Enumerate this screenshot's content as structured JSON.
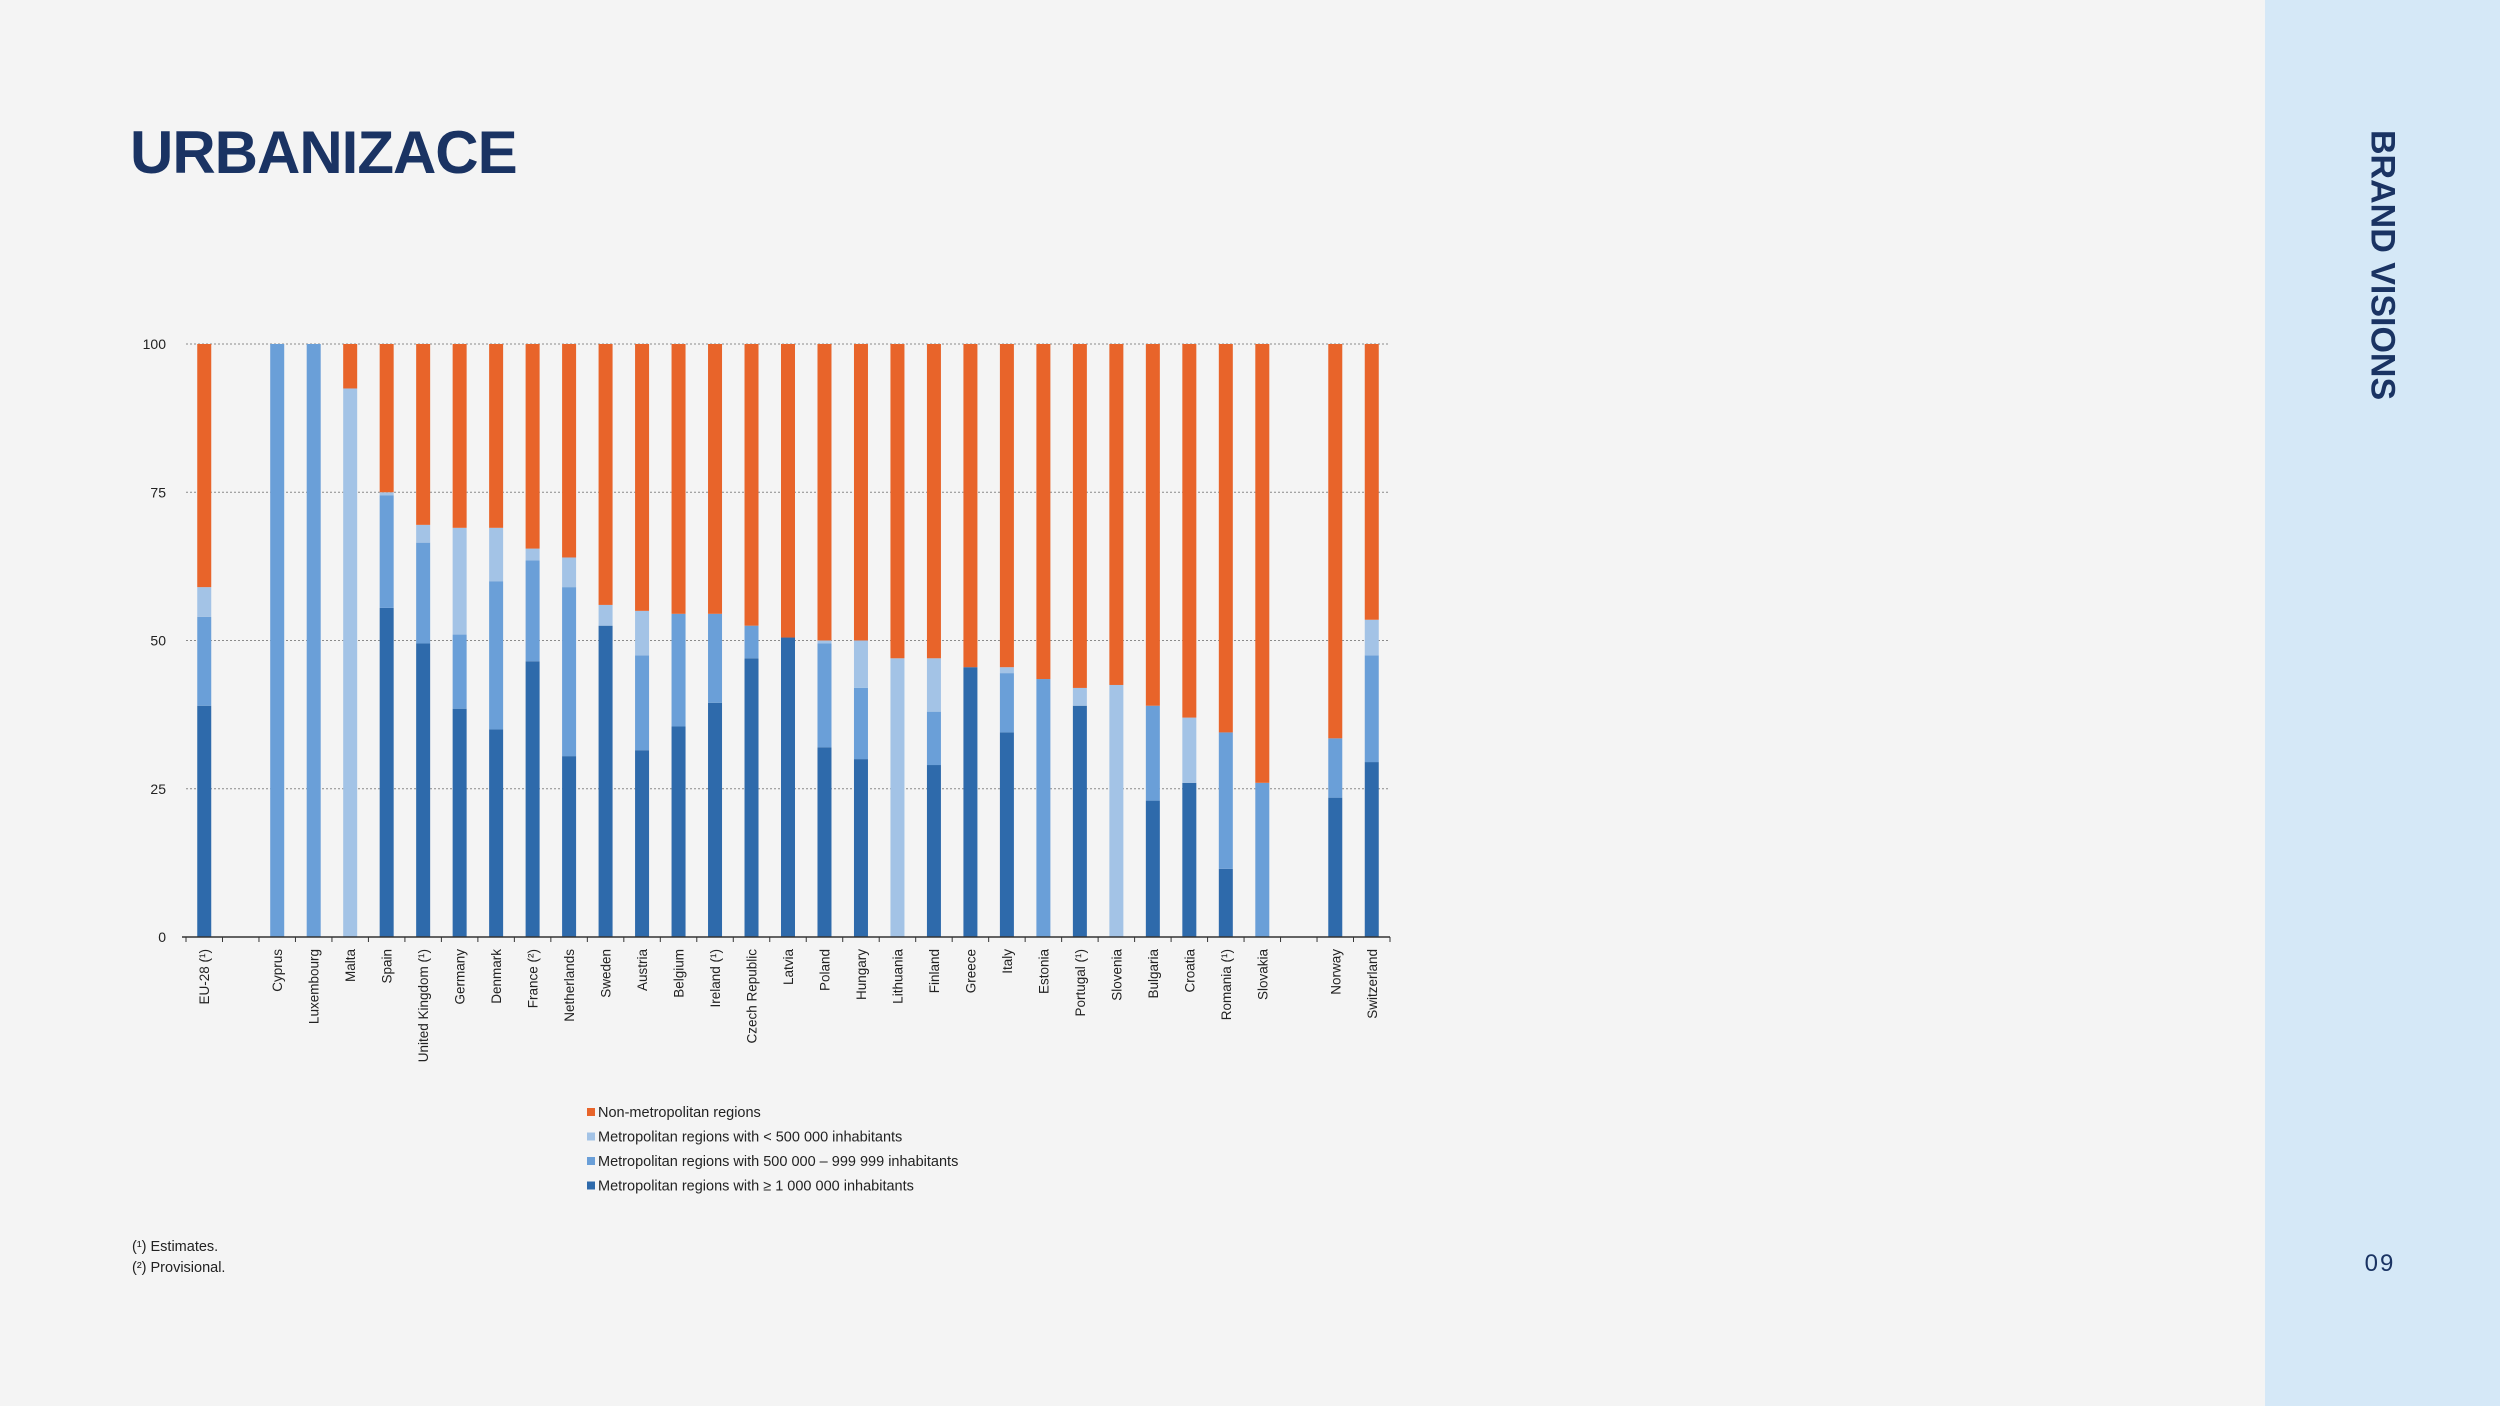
{
  "slide": {
    "title": "URBANIZACE",
    "brand": "BRAND VISIONS",
    "page_number": "09",
    "notes": [
      "(¹) Estimates.",
      "(²) Provisional."
    ],
    "accent_color": "#1a3363",
    "sidebar_color": "#d5e8f7"
  },
  "chart_data": {
    "type": "bar",
    "stacked": true,
    "title": "",
    "xlabel": "",
    "ylabel": "",
    "ylim": [
      0,
      100
    ],
    "yticks": [
      0,
      25,
      50,
      75,
      100
    ],
    "grid": true,
    "legend_position": "bottom",
    "categories": [
      "EU-28 (¹)",
      "",
      "Cyprus",
      "Luxembourg",
      "Malta",
      "Spain",
      "United Kingdom (¹)",
      "Germany",
      "Denmark",
      "France (²)",
      "Netherlands",
      "Sweden",
      "Austria",
      "Belgium",
      "Ireland (¹)",
      "Czech Republic",
      "Latvia",
      "Poland",
      "Hungary",
      "Lithuania",
      "Finland",
      "Greece",
      "Italy",
      "Estonia",
      "Portugal (¹)",
      "Slovenia",
      "Bulgaria",
      "Croatia",
      "Romania (¹)",
      "Slovakia",
      "",
      "Norway",
      "Switzerland"
    ],
    "series": [
      {
        "name": "Metropolitan regions with ≥ 1 000 000 inhabitants",
        "color": "#2e6aab",
        "values": [
          39,
          null,
          0,
          0,
          0,
          55.5,
          49.5,
          38.5,
          35,
          46.5,
          30.5,
          52.5,
          31.5,
          35.5,
          39.5,
          47,
          50.5,
          32,
          30,
          0,
          29,
          45.5,
          34.5,
          0,
          39,
          0,
          23,
          26,
          11.5,
          0,
          null,
          23.5,
          29.5
        ]
      },
      {
        "name": "Metropolitan regions with 500 000 – 999 999 inhabitants",
        "color": "#6a9fd8",
        "values": [
          15,
          null,
          100,
          100,
          0,
          19,
          17,
          12.5,
          25,
          17,
          28.5,
          0,
          16,
          19,
          15,
          5.5,
          0,
          17.5,
          12,
          0,
          9,
          0,
          10,
          43.5,
          0,
          0,
          16,
          0,
          23,
          26,
          null,
          10,
          18
        ]
      },
      {
        "name": "Metropolitan regions with < 500 000 inhabitants",
        "color": "#a3c3e6",
        "values": [
          5,
          null,
          0,
          0,
          92.5,
          0.5,
          3,
          18,
          9,
          2,
          5,
          3.5,
          7.5,
          0,
          0,
          0,
          0,
          0.5,
          8,
          47,
          9,
          0,
          1,
          0,
          3,
          42.5,
          0,
          11,
          0,
          0,
          null,
          0,
          6
        ]
      },
      {
        "name": "Non-metropolitan regions",
        "color": "#e8642a",
        "values": [
          41,
          null,
          0,
          0,
          7.5,
          25,
          30.5,
          31,
          31,
          34.5,
          36,
          44,
          45,
          45.5,
          45.5,
          47.5,
          49.5,
          50,
          50,
          53,
          53,
          54.5,
          54.5,
          56.5,
          58,
          57.5,
          61,
          63,
          65.5,
          74,
          null,
          66.5,
          46.5
        ]
      }
    ],
    "legend_order": [
      3,
      2,
      1,
      0
    ]
  }
}
